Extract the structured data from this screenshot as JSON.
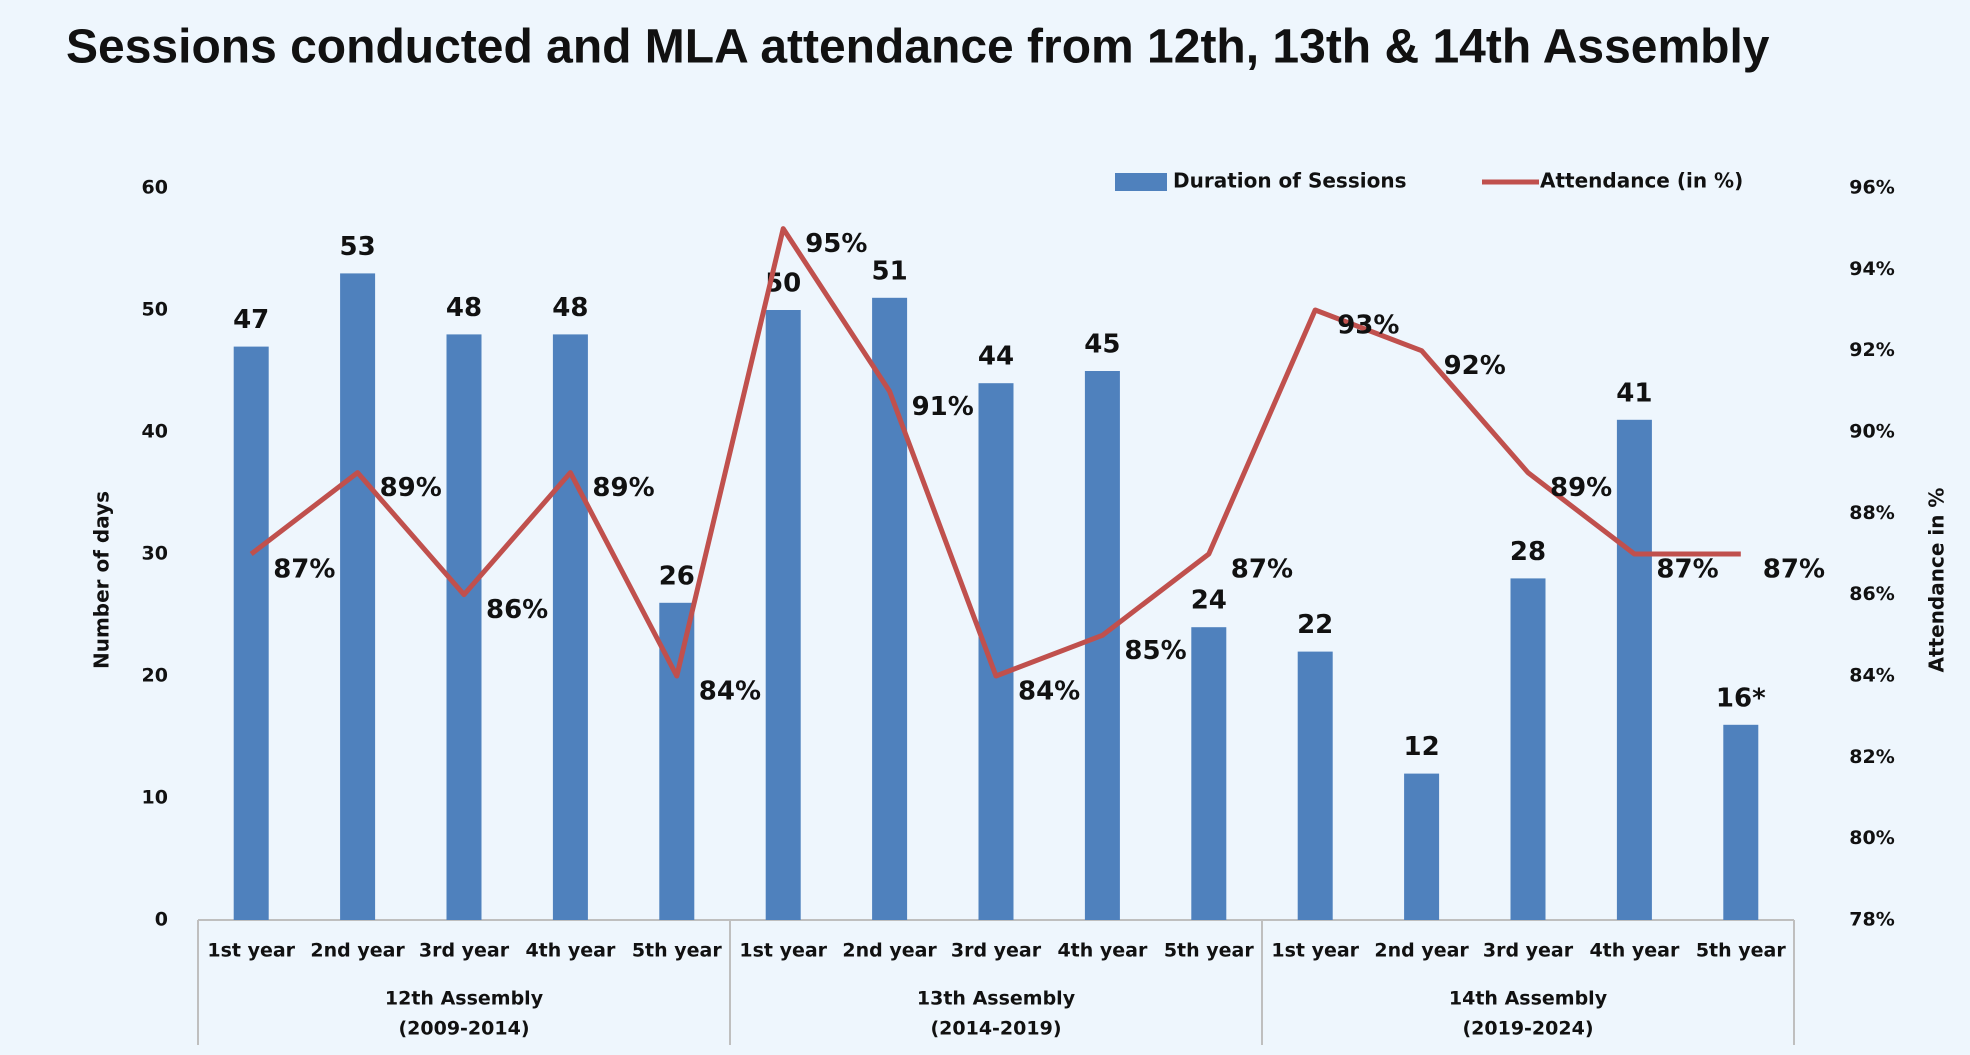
{
  "chart_data": {
    "type": "bar+line",
    "title": "Sessions conducted and MLA attendance from 12th, 13th & 14th Assembly",
    "categories": [
      "1st year",
      "2nd year",
      "3rd year",
      "4th year",
      "5th year",
      "1st year",
      "2nd year",
      "3rd year",
      "4th year",
      "5th year",
      "1st year",
      "2nd year",
      "3rd year",
      "4th year",
      "5th year"
    ],
    "groups": [
      {
        "name": "12th Assembly",
        "years": "(2009-2014)"
      },
      {
        "name": "13th Assembly",
        "years": "(2014-2019)"
      },
      {
        "name": "14th Assembly",
        "years": "(2019-2024)"
      }
    ],
    "series": [
      {
        "name": "Duration of Sessions",
        "type": "bar",
        "color": "#4f81bd",
        "values": [
          47,
          53,
          48,
          48,
          26,
          50,
          51,
          44,
          45,
          24,
          22,
          12,
          28,
          41,
          16
        ],
        "value_labels": [
          "47",
          "53",
          "48",
          "48",
          "26",
          "50",
          "51",
          "44",
          "45",
          "24",
          "22",
          "12",
          "28",
          "41",
          "16*"
        ]
      },
      {
        "name": "Attendance (in %)",
        "type": "line",
        "axis": "y2",
        "color": "#c0504d",
        "values": [
          87,
          89,
          86,
          89,
          84,
          95,
          91,
          84,
          85,
          87,
          93,
          92,
          89,
          87,
          87
        ],
        "value_labels": [
          "87%",
          "89%",
          "86%",
          "89%",
          "84%",
          "95%",
          "91%",
          "84%",
          "85%",
          "87%",
          "93%",
          "92%",
          "89%",
          "87%",
          "87%"
        ]
      }
    ],
    "y_label": "Number of days",
    "y2_label": "Attendance in %",
    "ylim": [
      0,
      60
    ],
    "yticks": [
      0,
      10,
      20,
      30,
      40,
      50,
      60
    ],
    "y2lim": [
      78,
      96
    ],
    "y2ticks": [
      {
        "value": 78,
        "label": "78%"
      },
      {
        "value": 80,
        "label": "80%"
      },
      {
        "value": 82,
        "label": "82%"
      },
      {
        "value": 84,
        "label": "84%"
      },
      {
        "value": 86,
        "label": "86%"
      },
      {
        "value": 88,
        "label": "88%"
      },
      {
        "value": 90,
        "label": "90%"
      },
      {
        "value": 92,
        "label": "92%"
      },
      {
        "value": 94,
        "label": "94%"
      },
      {
        "value": 96,
        "label": "96%"
      }
    ],
    "grid": false,
    "legend": "top-right"
  }
}
